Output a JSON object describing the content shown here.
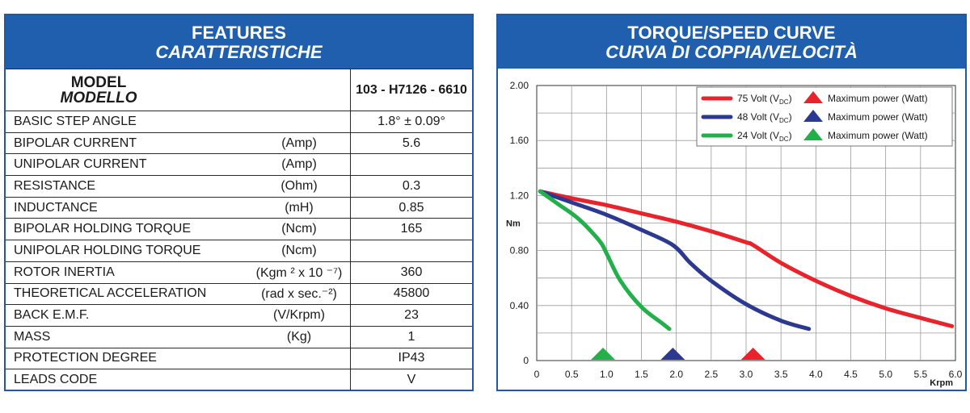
{
  "features": {
    "title": "FEATURES",
    "subtitle": "CARATTERISTICHE",
    "model_label": "MODEL",
    "model_label_it": "MODELLO",
    "model_value": "103 - H7126 - 6610",
    "rows": [
      {
        "label": "BASIC STEP ANGLE",
        "unit": "",
        "value": "1.8° ± 0.09°"
      },
      {
        "label": "BIPOLAR CURRENT",
        "unit": "(Amp)",
        "value": "5.6"
      },
      {
        "label": "UNIPOLAR CURRENT",
        "unit": "(Amp)",
        "value": ""
      },
      {
        "label": "RESISTANCE",
        "unit": "(Ohm)",
        "value": "0.3"
      },
      {
        "label": "INDUCTANCE",
        "unit": "(mH)",
        "value": "0.85"
      },
      {
        "label": "BIPOLAR HOLDING TORQUE",
        "unit": "(Ncm)",
        "value": "165"
      },
      {
        "label": "UNIPOLAR HOLDING TORQUE",
        "unit": "(Ncm)",
        "value": ""
      },
      {
        "label": "ROTOR INERTIA",
        "unit": "(Kgm ² x 10 ⁻⁷)",
        "value": "360"
      },
      {
        "label": "THEORETICAL ACCELERATION",
        "unit": "(rad x sec.⁻²)",
        "value": "45800"
      },
      {
        "label": "BACK E.M.F.",
        "unit": "(V/Krpm)",
        "value": "23"
      },
      {
        "label": "MASS",
        "unit": "(Kg)",
        "value": "1"
      },
      {
        "label": "PROTECTION DEGREE",
        "unit": "",
        "value": "IP43"
      },
      {
        "label": "LEADS CODE",
        "unit": "",
        "value": "V"
      }
    ]
  },
  "curve": {
    "title": "TORQUE/SPEED CURVE",
    "subtitle": "CURVA DI COPPIA/VELOCITÀ"
  },
  "chart_data": {
    "type": "line",
    "xlabel": "Krpm",
    "ylabel": "Nm",
    "xlim": [
      0,
      6.0
    ],
    "ylim": [
      0,
      2.0
    ],
    "xticks": [
      0,
      0.5,
      1.0,
      1.5,
      2.0,
      2.5,
      3.0,
      3.5,
      4.0,
      4.5,
      5.0,
      5.5,
      6.0
    ],
    "xtick_labels": [
      "0",
      "0.5",
      "1.0",
      "1.5",
      "2.0",
      "2.5",
      "3.0",
      "3.5",
      "4.0",
      "4.5",
      "5.0",
      "5.5",
      "6.0"
    ],
    "yticks": [
      0,
      0.4,
      0.8,
      1.2,
      1.6,
      2.0
    ],
    "ytick_labels": [
      "0",
      "0.40",
      "0.80",
      "1.20",
      "1.60",
      "2.00"
    ],
    "grid": true,
    "legend_position": "top-right",
    "max_power_label": "Maximum power (Watt)",
    "series": [
      {
        "name": "75 Volt",
        "subscript": "DC",
        "color": "#e8232b",
        "x": [
          0.05,
          0.5,
          1.0,
          1.5,
          2.0,
          2.5,
          3.0,
          3.1,
          3.5,
          4.0,
          4.5,
          5.0,
          5.5,
          5.95
        ],
        "y": [
          1.23,
          1.18,
          1.13,
          1.07,
          1.01,
          0.94,
          0.86,
          0.84,
          0.71,
          0.58,
          0.47,
          0.38,
          0.31,
          0.25
        ],
        "max_power_krpm": 3.1
      },
      {
        "name": "48 Volt",
        "subscript": "DC",
        "color": "#2b3990",
        "x": [
          0.05,
          0.5,
          1.0,
          1.5,
          1.95,
          2.2,
          2.5,
          3.0,
          3.5,
          3.9
        ],
        "y": [
          1.23,
          1.15,
          1.06,
          0.95,
          0.84,
          0.71,
          0.58,
          0.41,
          0.29,
          0.23
        ],
        "max_power_krpm": 1.95
      },
      {
        "name": "24 Volt",
        "subscript": "DC",
        "color": "#22b04b",
        "x": [
          0.05,
          0.3,
          0.6,
          0.9,
          1.0,
          1.2,
          1.5,
          1.8,
          1.9
        ],
        "y": [
          1.23,
          1.14,
          1.03,
          0.87,
          0.78,
          0.58,
          0.39,
          0.27,
          0.23
        ],
        "max_power_krpm": 0.95
      }
    ]
  }
}
